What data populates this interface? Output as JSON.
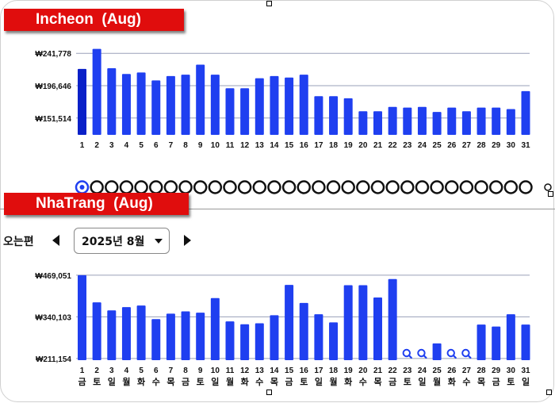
{
  "incheon": {
    "title": "Incheon  (Aug)",
    "y_labels": [
      "₩241,778",
      "₩196,646",
      "₩151,514"
    ]
  },
  "nhatrang": {
    "title": "NhaTrang  (Aug)",
    "y_labels": [
      "₩469,051",
      "₩340,103",
      "₩211,154"
    ]
  },
  "controls": {
    "label": "오는편",
    "month_value": "2025년 8월"
  },
  "days": [
    "1",
    "2",
    "3",
    "4",
    "5",
    "6",
    "7",
    "8",
    "9",
    "10",
    "11",
    "12",
    "13",
    "14",
    "15",
    "16",
    "17",
    "18",
    "19",
    "20",
    "21",
    "22",
    "23",
    "24",
    "25",
    "26",
    "27",
    "28",
    "29",
    "30",
    "31"
  ],
  "weekdays": [
    "금",
    "토",
    "일",
    "월",
    "화",
    "수",
    "목",
    "금",
    "토",
    "일",
    "월",
    "화",
    "수",
    "목",
    "금",
    "토",
    "일",
    "월",
    "화",
    "수",
    "목",
    "금",
    "토",
    "일",
    "월",
    "화",
    "수",
    "목",
    "금",
    "토",
    "일"
  ],
  "colors": {
    "bar": "#1f3ff0",
    "bar_selected": "#0a20c8",
    "banner": "#e00d0d"
  },
  "chart_data": [
    {
      "type": "bar",
      "title": "Incheon  (Aug)",
      "categories": [
        "1",
        "2",
        "3",
        "4",
        "5",
        "6",
        "7",
        "8",
        "9",
        "10",
        "11",
        "12",
        "13",
        "14",
        "15",
        "16",
        "17",
        "18",
        "19",
        "20",
        "21",
        "22",
        "23",
        "24",
        "25",
        "26",
        "27",
        "28",
        "29",
        "30",
        "31"
      ],
      "values": [
        220000,
        248000,
        221000,
        213000,
        215000,
        204000,
        210000,
        212000,
        226000,
        212000,
        193000,
        193000,
        207000,
        210000,
        208000,
        212000,
        182000,
        182000,
        179000,
        161000,
        161000,
        167000,
        166000,
        167000,
        160000,
        166000,
        161000,
        166000,
        166000,
        164000,
        189000
      ],
      "ylim": [
        128000,
        252000
      ],
      "y_ticks": [
        151514,
        196646,
        241778
      ],
      "grid": true,
      "selected_index": 0
    },
    {
      "type": "bar",
      "title": "NhaTrang  (Aug)",
      "categories": [
        "1",
        "2",
        "3",
        "4",
        "5",
        "6",
        "7",
        "8",
        "9",
        "10",
        "11",
        "12",
        "13",
        "14",
        "15",
        "16",
        "17",
        "18",
        "19",
        "20",
        "21",
        "22",
        "23",
        "24",
        "25",
        "26",
        "27",
        "28",
        "29",
        "30",
        "31"
      ],
      "values": [
        469051,
        385000,
        360000,
        370000,
        375000,
        333000,
        350000,
        357000,
        353000,
        398000,
        326000,
        317000,
        320000,
        345000,
        439000,
        383000,
        348000,
        323000,
        438000,
        438000,
        400000,
        457000,
        null,
        null,
        258000,
        null,
        null,
        316000,
        310000,
        348000,
        316000
      ],
      "no_data_indices": [
        22,
        23,
        25,
        26
      ],
      "ylim": [
        206000,
        476000
      ],
      "y_ticks": [
        211154,
        340103,
        469051
      ],
      "grid": true
    }
  ]
}
